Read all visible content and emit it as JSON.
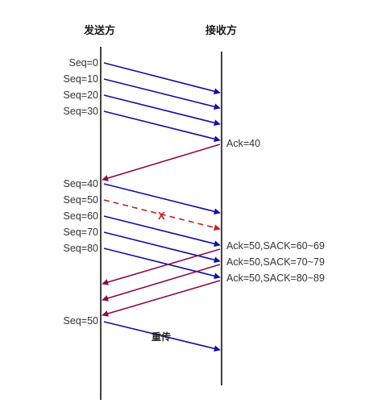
{
  "sender_label": "发送方",
  "receiver_label": "接收方",
  "loss_mark": "X",
  "retransmit_label": "重传",
  "colors": {
    "data_arrow": "#1010a8",
    "ack_arrow": "#8b0a4a",
    "lost_arrow": "#cc1f1f",
    "timeline": "#111111"
  },
  "sends": [
    {
      "seq": "Seq=0",
      "status": "delivered"
    },
    {
      "seq": "Seq=10",
      "status": "delivered"
    },
    {
      "seq": "Seq=20",
      "status": "delivered"
    },
    {
      "seq": "Seq=30",
      "status": "delivered"
    },
    {
      "seq": "Seq=40",
      "status": "delivered"
    },
    {
      "seq": "Seq=50",
      "status": "lost"
    },
    {
      "seq": "Seq=60",
      "status": "delivered"
    },
    {
      "seq": "Seq=70",
      "status": "delivered"
    },
    {
      "seq": "Seq=80",
      "status": "delivered"
    },
    {
      "seq": "Seq=50",
      "status": "retransmitted"
    }
  ],
  "acks": [
    {
      "label": "Ack=40"
    },
    {
      "label": "Ack=50,SACK=60~69"
    },
    {
      "label": "Ack=50,SACK=70~79"
    },
    {
      "label": "Ack=50,SACK=80~89"
    }
  ]
}
